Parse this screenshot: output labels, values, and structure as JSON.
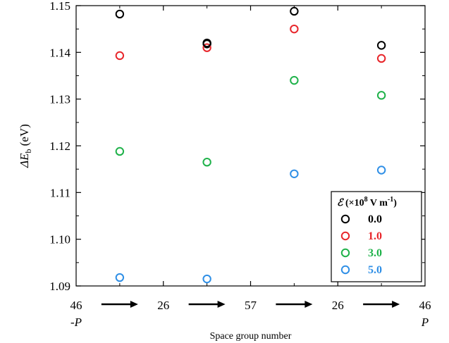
{
  "chart_data": {
    "type": "scatter",
    "xlabel": "Space group number",
    "ylabel_italic": "ΔE",
    "ylabel_sub": "b",
    "ylabel_unit": " (eV)",
    "ylim": [
      1.09,
      1.15
    ],
    "yticks": [
      "1.09",
      "1.10",
      "1.11",
      "1.12",
      "1.13",
      "1.14",
      "1.15"
    ],
    "x_positions": [
      1,
      2,
      3,
      4
    ],
    "xticks_top": [
      "46",
      "26",
      "57",
      "26",
      "46"
    ],
    "xticks_bottom": [
      "-P",
      "P"
    ],
    "grid": false,
    "legend": {
      "title_symbol": "ℰ",
      "title_text": " (×10",
      "title_exp": "8",
      "title_units": " V m",
      "title_units_exp": "-1",
      "title_close": ")",
      "placement": "bottom-right"
    },
    "series": [
      {
        "name": "0.0",
        "color": "#000000",
        "values": [
          1.1482,
          1.1418,
          1.1488,
          1.1415
        ]
      },
      {
        "name": "1.0",
        "color": "#e8262b",
        "values": [
          1.1393,
          1.141,
          1.145,
          1.1387
        ]
      },
      {
        "name": "3.0",
        "color": "#1fb24a",
        "values": [
          1.1188,
          1.1165,
          1.134,
          1.1308
        ]
      },
      {
        "name": "5.0",
        "color": "#2f8fe6",
        "values": [
          1.0918,
          1.0915,
          1.114,
          1.1148
        ]
      }
    ],
    "extra_points": [
      {
        "series": "0.0",
        "x": 2,
        "value": 1.142
      }
    ]
  }
}
